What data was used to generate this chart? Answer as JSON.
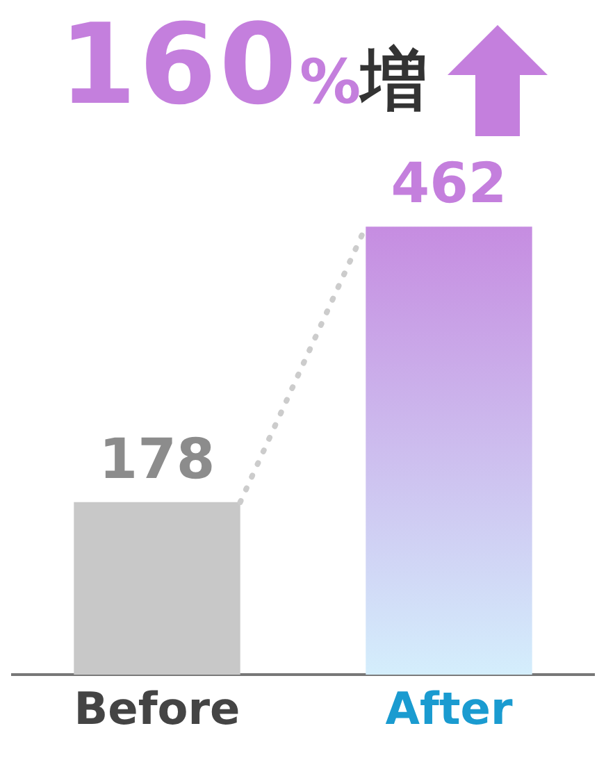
{
  "chart_data": {
    "type": "bar",
    "title": "160%増",
    "categories": [
      "Before",
      "After"
    ],
    "values": [
      178,
      462
    ],
    "colors": [
      "#c8c8c8",
      "#c47fdd"
    ],
    "data_labels": true,
    "grid": false,
    "legend": false,
    "tick_labels": "x"
  }
}
